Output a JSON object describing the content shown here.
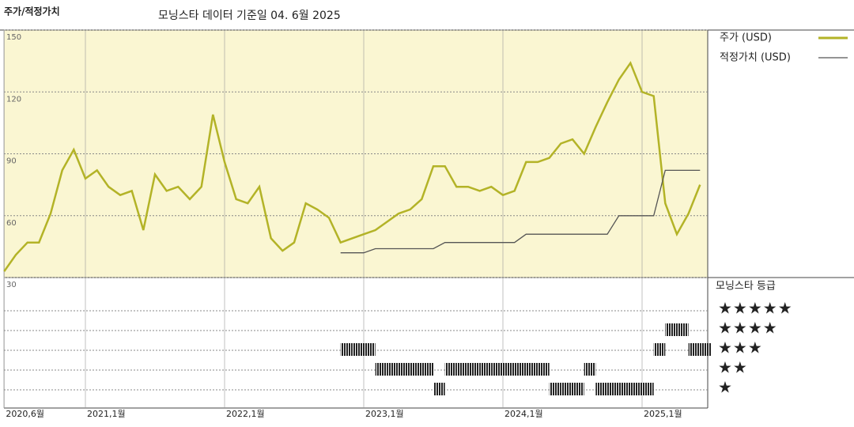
{
  "chart_data": {
    "type": "line",
    "title": "주가/적정가치",
    "subtitle": "모닝스타 데이터 기준일 04. 6월 2025",
    "x": [
      "2020-06",
      "2020-07",
      "2020-08",
      "2020-09",
      "2020-10",
      "2020-11",
      "2020-12",
      "2021-01",
      "2021-02",
      "2021-03",
      "2021-04",
      "2021-05",
      "2021-06",
      "2021-07",
      "2021-08",
      "2021-09",
      "2021-10",
      "2021-11",
      "2021-12",
      "2022-01",
      "2022-02",
      "2022-03",
      "2022-04",
      "2022-05",
      "2022-06",
      "2022-07",
      "2022-08",
      "2022-09",
      "2022-10",
      "2022-11",
      "2022-12",
      "2023-01",
      "2023-02",
      "2023-03",
      "2023-04",
      "2023-05",
      "2023-06",
      "2023-07",
      "2023-08",
      "2023-09",
      "2023-10",
      "2023-11",
      "2023-12",
      "2024-01",
      "2024-02",
      "2024-03",
      "2024-04",
      "2024-05",
      "2024-06",
      "2024-07",
      "2024-08",
      "2024-09",
      "2024-10",
      "2024-11",
      "2024-12",
      "2025-01",
      "2025-02",
      "2025-03",
      "2025-04",
      "2025-05",
      "2025-06"
    ],
    "xticks": [
      {
        "value": "2020-06",
        "label": "2020,6월"
      },
      {
        "value": "2021-01",
        "label": "2021,1월"
      },
      {
        "value": "2022-01",
        "label": "2022,1월"
      },
      {
        "value": "2023-01",
        "label": "2023,1월"
      },
      {
        "value": "2024-01",
        "label": "2024,1월"
      },
      {
        "value": "2025-01",
        "label": "2025,1월"
      }
    ],
    "ylim": [
      30,
      150
    ],
    "yticks": [
      30,
      60,
      90,
      120,
      150
    ],
    "series": [
      {
        "name": "주가 (USD)",
        "color": "#b3b327",
        "values": [
          33,
          41,
          47,
          47,
          61,
          82,
          92,
          78,
          82,
          74,
          70,
          72,
          53,
          80,
          72,
          74,
          68,
          74,
          109,
          86,
          68,
          66,
          74,
          49,
          43,
          47,
          66,
          63,
          59,
          47,
          49,
          51,
          53,
          57,
          61,
          63,
          68,
          84,
          84,
          74,
          74,
          72,
          74,
          70,
          72,
          86,
          86,
          88,
          95,
          97,
          90,
          103,
          115,
          126,
          134,
          120,
          118,
          66,
          51,
          61,
          75
        ]
      },
      {
        "name": "적정가치 (USD)",
        "color": "#555555",
        "values": [
          null,
          null,
          null,
          null,
          null,
          null,
          null,
          null,
          null,
          null,
          null,
          null,
          null,
          null,
          null,
          null,
          null,
          null,
          null,
          null,
          null,
          null,
          null,
          null,
          null,
          null,
          null,
          null,
          null,
          42,
          42,
          42,
          44,
          44,
          44,
          44,
          44,
          44,
          47,
          47,
          47,
          47,
          47,
          47,
          47,
          51,
          51,
          51,
          51,
          51,
          51,
          51,
          51,
          60,
          60,
          60,
          60,
          82,
          82,
          82,
          82
        ]
      }
    ],
    "rating": {
      "title": "모닝스타 등급",
      "values": [
        null,
        null,
        null,
        null,
        null,
        null,
        null,
        null,
        null,
        null,
        null,
        null,
        null,
        null,
        null,
        null,
        null,
        null,
        null,
        null,
        null,
        null,
        null,
        null,
        null,
        null,
        null,
        null,
        null,
        3,
        3,
        3,
        2,
        2,
        2,
        2,
        2,
        1,
        2,
        2,
        2,
        2,
        2,
        2,
        2,
        2,
        2,
        1,
        1,
        1,
        2,
        1,
        1,
        1,
        1,
        1,
        3,
        4,
        4,
        3,
        3
      ],
      "levels": [
        {
          "value": 5,
          "label": "★★★★★"
        },
        {
          "value": 4,
          "label": "★★★★"
        },
        {
          "value": 3,
          "label": "★★★"
        },
        {
          "value": 2,
          "label": "★★"
        },
        {
          "value": 1,
          "label": "★"
        }
      ]
    }
  }
}
